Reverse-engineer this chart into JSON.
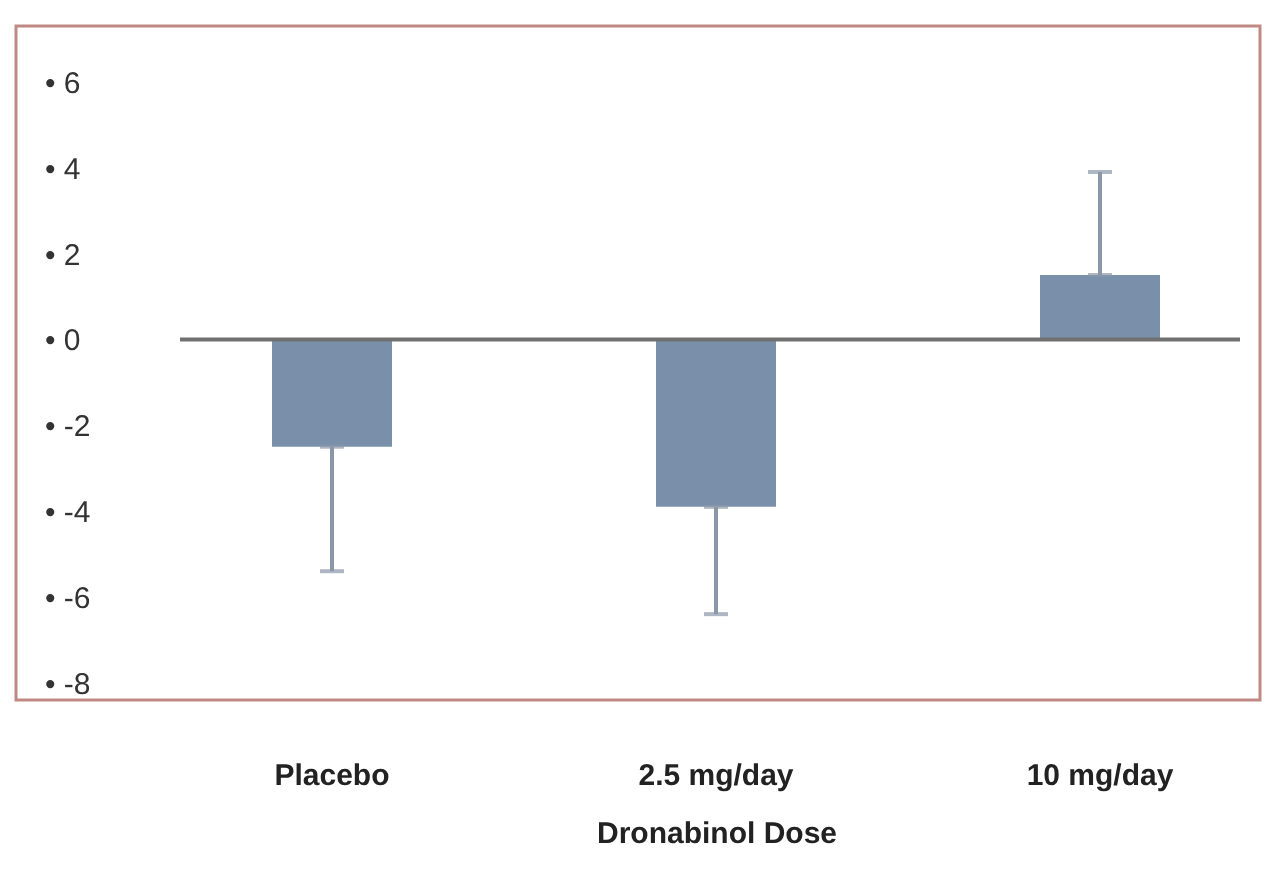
{
  "chart_data": {
    "type": "bar",
    "xlabel": "Dronabinol Dose",
    "categories": [
      "Placebo",
      "2.5 mg/day",
      "10 mg/day"
    ],
    "values": [
      -2.5,
      -3.9,
      1.5
    ],
    "errors": [
      [
        -5.4,
        -2.5
      ],
      [
        -6.4,
        -3.9
      ],
      [
        1.5,
        3.9
      ]
    ],
    "color": "#7a90aa",
    "ylim": [
      -8.4,
      7.3
    ],
    "yticks": [
      {
        "value": 6,
        "label": "•  6"
      },
      {
        "value": 4,
        "label": "•  4"
      },
      {
        "value": 2,
        "label": "•  2"
      },
      {
        "value": 0,
        "label": "•  0"
      },
      {
        "value": -2,
        "label": "•  -2"
      },
      {
        "value": -4,
        "label": "•  -4"
      },
      {
        "value": -6,
        "label": "•  -6"
      },
      {
        "value": -8,
        "label": "•  -8"
      }
    ],
    "ref_lines": [
      {
        "axis": "y",
        "value": 0,
        "color": "#707070"
      }
    ],
    "grid": false
  }
}
